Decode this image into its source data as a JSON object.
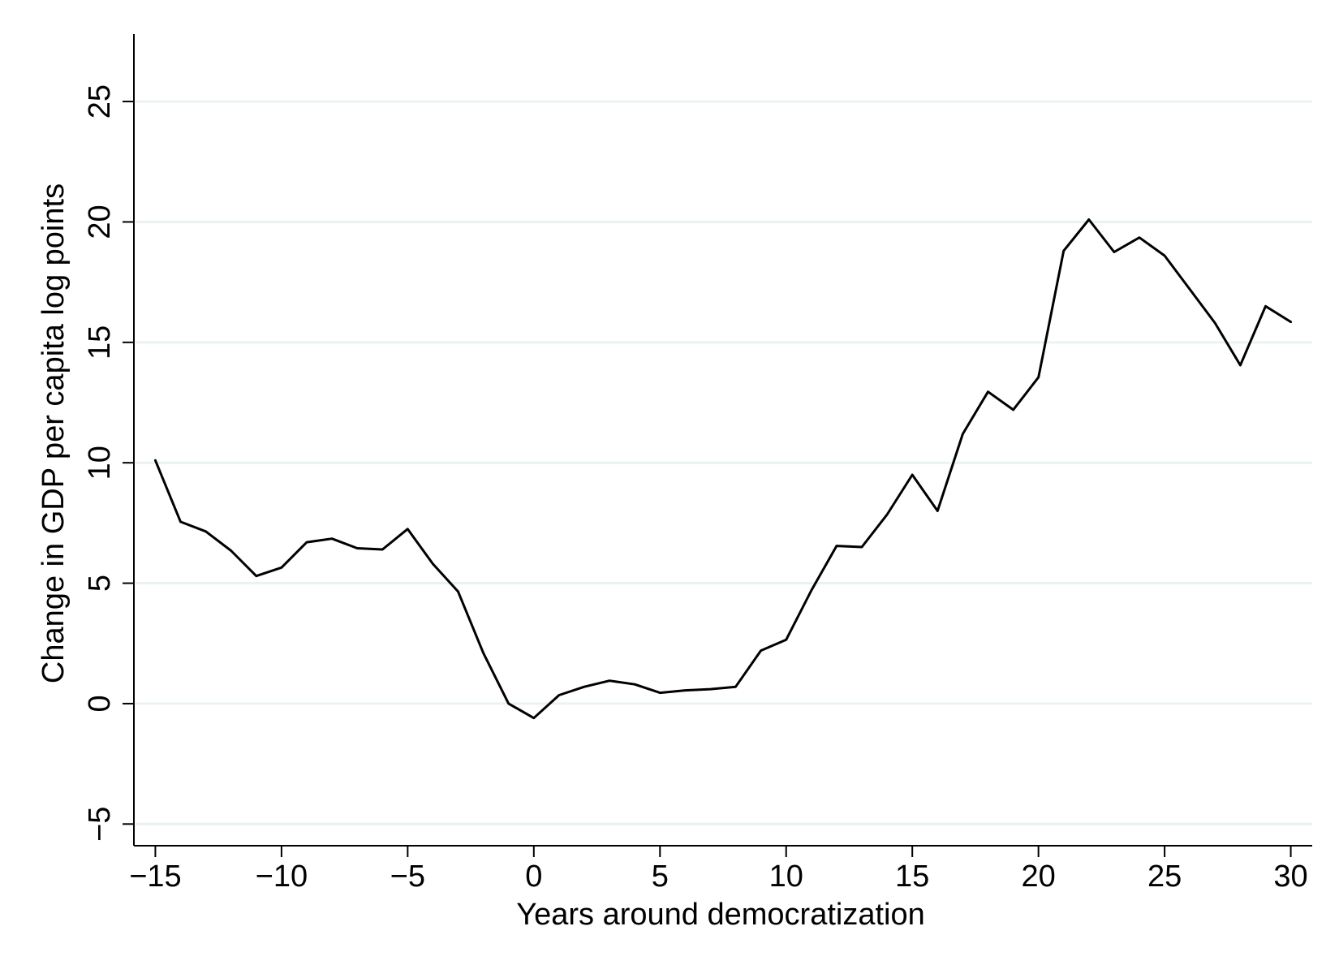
{
  "chart_data": {
    "type": "line",
    "title": "",
    "xlabel": "Years around democratization",
    "ylabel": "Change in GDP per capita log points",
    "xlim": [
      -15.85,
      30.85
    ],
    "ylim": [
      -5.9,
      27.8
    ],
    "xticks": [
      {
        "value": -15,
        "label": "−15"
      },
      {
        "value": -10,
        "label": "−10"
      },
      {
        "value": -5,
        "label": "−5"
      },
      {
        "value": 0,
        "label": "0"
      },
      {
        "value": 5,
        "label": "5"
      },
      {
        "value": 10,
        "label": "10"
      },
      {
        "value": 15,
        "label": "15"
      },
      {
        "value": 20,
        "label": "20"
      },
      {
        "value": 25,
        "label": "25"
      },
      {
        "value": 30,
        "label": "30"
      }
    ],
    "yticks": [
      {
        "value": -5,
        "label": "−5"
      },
      {
        "value": 0,
        "label": "0"
      },
      {
        "value": 5,
        "label": "5"
      },
      {
        "value": 10,
        "label": "10"
      },
      {
        "value": 15,
        "label": "15"
      },
      {
        "value": 20,
        "label": "20"
      },
      {
        "value": 25,
        "label": "25"
      }
    ],
    "grid": "horizontal",
    "colors": {
      "line": "#000000",
      "grid": "#eaf2f3",
      "axis": "#000000"
    },
    "series": [
      {
        "x": [
          -15,
          -14,
          -13,
          -12,
          -11,
          -10,
          -9,
          -8,
          -7,
          -6,
          -5,
          -4,
          -3,
          -2,
          -1,
          0,
          1,
          2,
          3,
          4,
          5,
          6,
          7,
          8,
          9,
          10,
          11,
          12,
          13,
          14,
          15,
          16,
          17,
          18,
          19,
          20,
          21,
          22,
          23,
          24,
          25,
          26,
          27,
          28,
          29,
          30
        ],
        "values": [
          10.1,
          7.55,
          7.15,
          6.35,
          5.3,
          5.65,
          6.7,
          6.85,
          6.45,
          6.4,
          7.25,
          5.8,
          4.65,
          2.1,
          0.0,
          -0.6,
          0.35,
          0.7,
          0.95,
          0.8,
          0.45,
          0.55,
          0.6,
          0.7,
          2.2,
          2.65,
          4.7,
          6.55,
          6.5,
          7.85,
          9.5,
          8.0,
          11.2,
          12.95,
          12.2,
          13.55,
          18.8,
          20.1,
          18.75,
          19.35,
          18.6,
          17.2,
          15.8,
          14.05,
          16.5,
          15.85
        ]
      }
    ]
  }
}
